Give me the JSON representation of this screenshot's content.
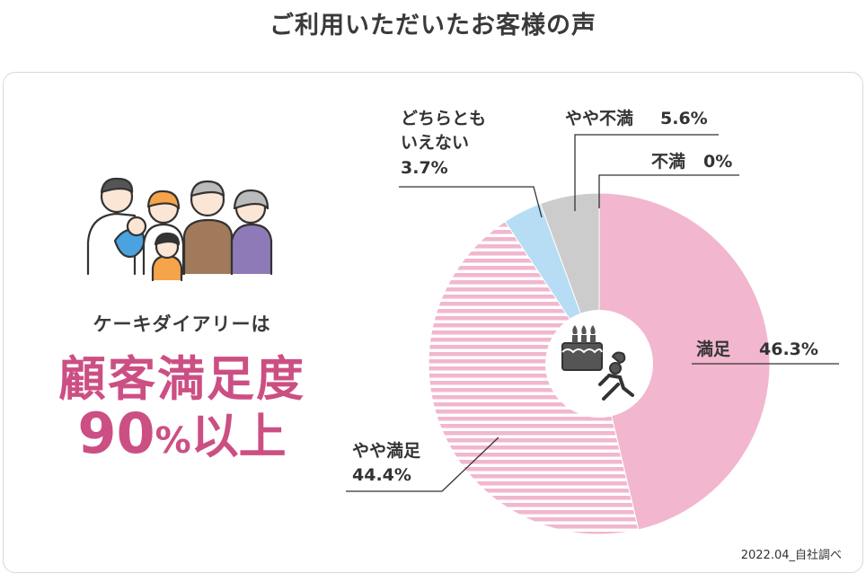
{
  "page_title": "ご利用いただいたお客様の声",
  "tagline": "ケーキダイアリーは",
  "headline": {
    "line1": "顧客満足度",
    "number": "90",
    "percent_sign": "%",
    "suffix": "以上"
  },
  "source_note": "2022.04_自社調べ",
  "colors": {
    "accent": "#cc4f84",
    "satisfied": "#f2b6cf",
    "somewhat_satisfied": "#f2b6cf",
    "neutral": "#b6ddf3",
    "somewhat_dissatisfied": "#cccccc",
    "dissatisfied": "#aaaaaa"
  },
  "icons": [
    "family-illustration-icon",
    "cake-icon",
    "chef-running-icon"
  ],
  "chart_data": {
    "type": "pie",
    "title": "",
    "slices": [
      {
        "name": "満足",
        "value": 46.3,
        "value_label": "46.3%",
        "pattern": "solid"
      },
      {
        "name": "やや満足",
        "value": 44.4,
        "value_label": "44.4%",
        "pattern": "stripes"
      },
      {
        "name": "どちらとも いえない",
        "value": 3.7,
        "value_label": "3.7%",
        "pattern": "solid"
      },
      {
        "name": "やや不満",
        "value": 5.6,
        "value_label": "5.6%",
        "pattern": "solid"
      },
      {
        "name": "不満",
        "value": 0,
        "value_label": "0%",
        "pattern": "solid"
      }
    ],
    "labels": {
      "satisfied_name": "満足",
      "satisfied_value": "46.3%",
      "somewhat_satisfied_name": "やや満足",
      "somewhat_satisfied_value": "44.4%",
      "neutral_line1": "どちらとも",
      "neutral_line2": "いえない",
      "neutral_value": "3.7%",
      "somewhat_dissatisfied_name": "やや不満",
      "somewhat_dissatisfied_value": "5.6%",
      "dissatisfied_name": "不満",
      "dissatisfied_value": "0%"
    }
  }
}
